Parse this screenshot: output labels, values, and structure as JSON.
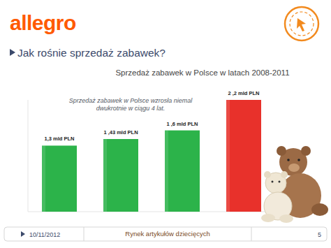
{
  "slide": {
    "logo": "allegro",
    "heading": "Jak rośnie sprzedaż zabawek?",
    "footer_date": "10/11/2012",
    "footer_title": "Rynek artykułów dziecięcych",
    "page_number": "5"
  },
  "chart_data": {
    "type": "bar",
    "title": "Sprzedaż zabawek  w Polsce w latach 2008-2011",
    "annotations": [
      "Sprzedaż zabawek w Polsce wzrosła niemal dwukrotnie w ciągu 4 lat."
    ],
    "categories": [
      null,
      null,
      null,
      null
    ],
    "values": [
      1.3,
      1.43,
      1.6,
      2.2
    ],
    "value_labels": [
      "1,3 mld PLN",
      "1 ,43 mld PLN",
      "1 ,6 mld PLN",
      "2 ,2 mld PLN"
    ],
    "colors": [
      "#2cb34a",
      "#2cb34a",
      "#2cb34a",
      "#e8312b"
    ],
    "ylim": [
      0,
      2.2
    ],
    "data_labels": true,
    "tick_labels": false,
    "grid": false
  }
}
